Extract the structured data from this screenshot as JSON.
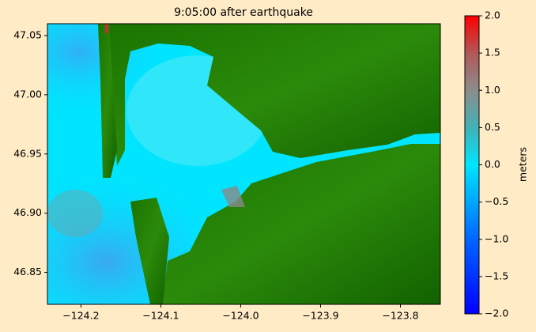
{
  "chart_data": {
    "type": "map",
    "title": "9:05:00 after earthquake",
    "xlim": [
      -124.242,
      -123.75
    ],
    "ylim": [
      46.823,
      47.06
    ],
    "xticks": [
      {
        "value": -124.2,
        "label": "−124.2"
      },
      {
        "value": -124.1,
        "label": "−124.1"
      },
      {
        "value": -124.0,
        "label": "−124.0"
      },
      {
        "value": -123.9,
        "label": "−123.9"
      },
      {
        "value": -123.8,
        "label": "−123.8"
      }
    ],
    "yticks": [
      46.85,
      {
        "value": 46.9,
        "label": "46.90"
      },
      46.95,
      {
        "value": 47.0,
        "label": "47.00"
      },
      47.05
    ],
    "colorbar": {
      "label": "meters",
      "lim": [
        -2,
        2
      ],
      "ticks": [
        {
          "value": 2,
          "label": "2.0"
        },
        1.5,
        {
          "value": 1,
          "label": "1.0"
        },
        0.5,
        {
          "value": 0,
          "label": "0.0"
        },
        {
          "value": -0.5,
          "label": "−0.5"
        },
        {
          "value": -1,
          "label": "−1.0"
        },
        {
          "value": -1.5,
          "label": "−1.5"
        },
        {
          "value": -2,
          "label": "−2.0"
        }
      ]
    }
  }
}
